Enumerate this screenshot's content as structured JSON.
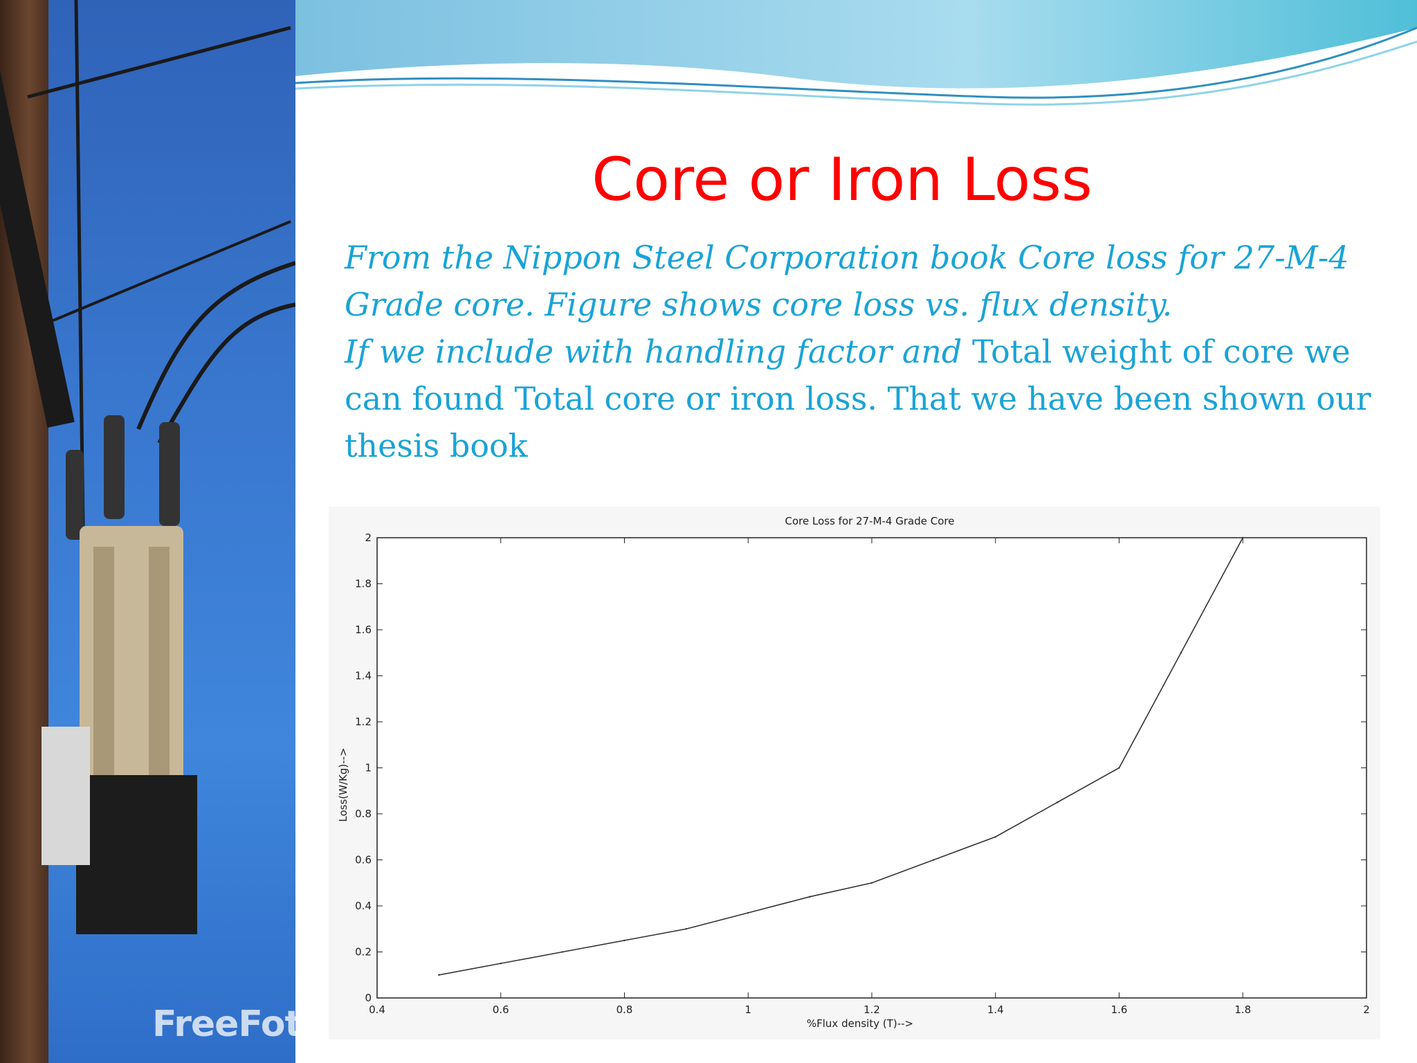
{
  "slide": {
    "title": "Core or Iron Loss",
    "paragraph_1_line_1": "From the Nippon Steel Corporation book Core loss for 27-M-4",
    "paragraph_1_line_2": "Grade core. Figure shows core loss vs. flux density.",
    "paragraph_2_italic": "If we include with handling factor and ",
    "paragraph_2_plain": "Total weight of core we can found Total core or iron loss. That we have been shown our thesis book",
    "watermark": "FreeFoto.com"
  },
  "colors": {
    "title": "#ff0000",
    "body_text": "#1aa3d6",
    "line": "#333333",
    "grid": "#999999"
  },
  "chart_data": {
    "type": "line",
    "title": "Core Loss for 27-M-4 Grade Core",
    "xlabel": "%Flux density (T)-->",
    "ylabel": "Loss(W/Kg)-->",
    "xlim": [
      0.4,
      2
    ],
    "ylim": [
      0,
      2
    ],
    "xticks": [
      "0.4",
      "0.6",
      "0.8",
      "1",
      "1.2",
      "1.4",
      "1.6",
      "1.8",
      "2"
    ],
    "yticks": [
      "0",
      "0.2",
      "0.4",
      "0.6",
      "0.8",
      "1",
      "1.2",
      "1.4",
      "1.6",
      "1.8",
      "2"
    ],
    "grid": true,
    "x": [
      0.5,
      0.6,
      0.7,
      0.8,
      0.9,
      1.0,
      1.1,
      1.2,
      1.3,
      1.4,
      1.5,
      1.6,
      1.7,
      1.8
    ],
    "y": [
      0.1,
      0.15,
      0.2,
      0.25,
      0.3,
      0.37,
      0.44,
      0.5,
      0.6,
      0.7,
      0.85,
      1.0,
      1.5,
      2.0
    ]
  }
}
